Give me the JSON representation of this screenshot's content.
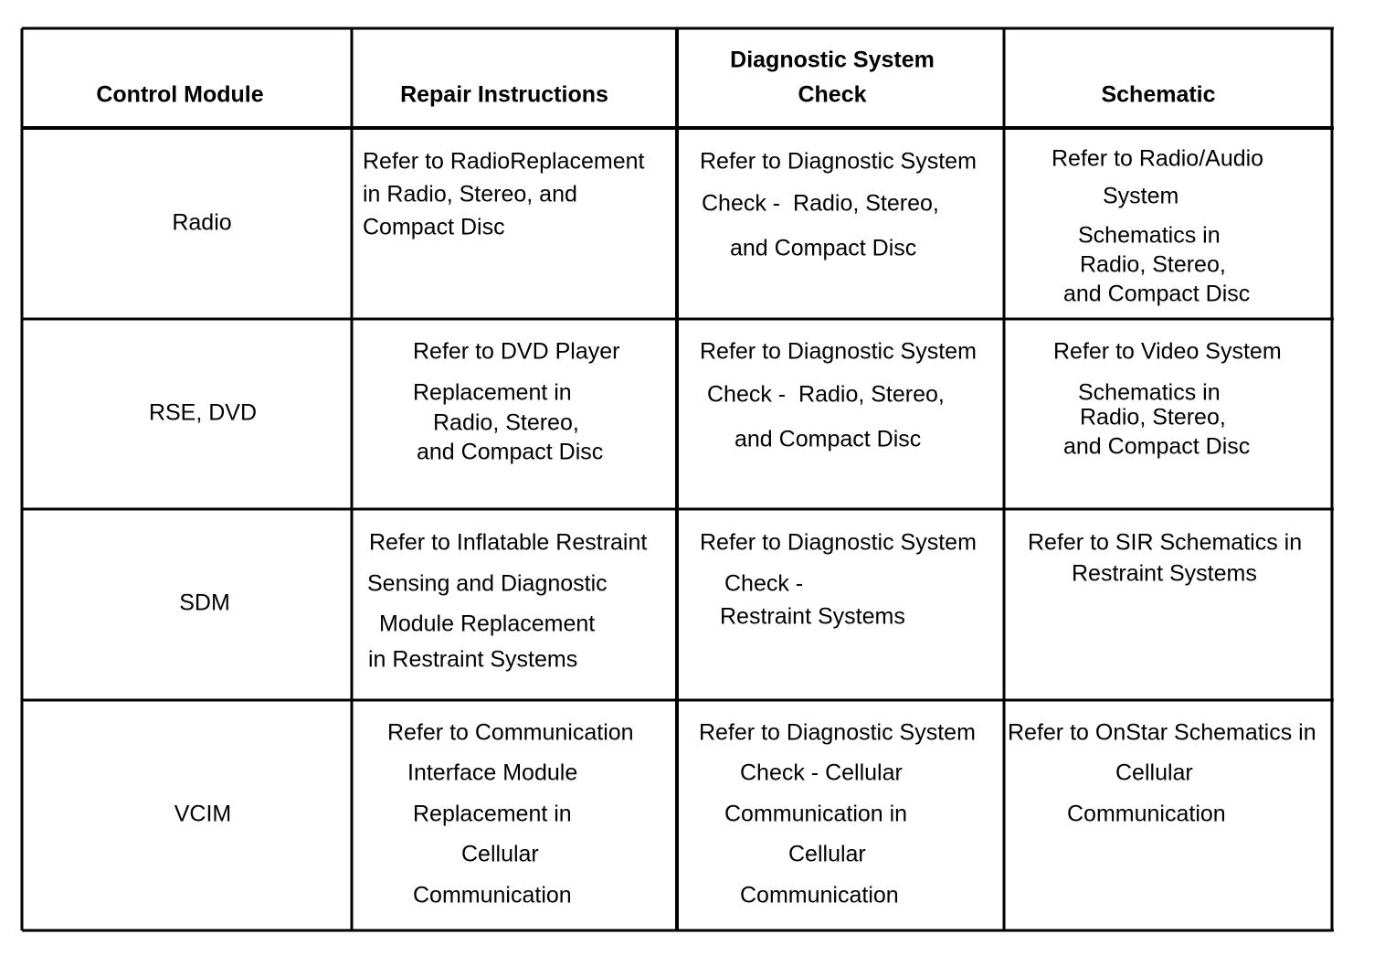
{
  "table": {
    "header": [
      [
        "Control Module"
      ],
      [
        "Repair Instructions"
      ],
      [
        "Diagnostic System",
        "Check"
      ],
      [
        "Schematic"
      ]
    ],
    "rows": [
      [
        [
          "Radio"
        ],
        [
          "Refer to RadioReplacement",
          "in Radio, Stereo, and",
          "Compact Disc"
        ],
        [
          "Refer to Diagnostic System",
          "Check -  Radio, Stereo,",
          "and Compact Disc"
        ],
        [
          "Refer to Radio/Audio",
          "System",
          "Schematics in",
          "Radio, Stereo,",
          "and Compact Disc"
        ]
      ],
      [
        [
          "RSE, DVD"
        ],
        [
          "Refer to DVD Player",
          "Replacement in",
          "Radio, Stereo,",
          "and Compact Disc"
        ],
        [
          "Refer to Diagnostic System",
          "Check -  Radio, Stereo,",
          "and Compact Disc"
        ],
        [
          "Refer to Video System",
          "Schematics in",
          "Radio, Stereo,",
          "and Compact Disc"
        ]
      ],
      [
        [
          "SDM"
        ],
        [
          "Refer to Inflatable Restraint",
          "Sensing and Diagnostic",
          "Module Replacement",
          "in Restraint Systems"
        ],
        [
          "Refer to Diagnostic System",
          "Check -",
          "Restraint Systems"
        ],
        [
          "Refer to SIR Schematics in",
          "Restraint Systems"
        ]
      ],
      [
        [
          "VCIM"
        ],
        [
          "Refer to Communication",
          "Interface Module",
          "Replacement in",
          "Cellular",
          "Communication"
        ],
        [
          "Refer to Diagnostic System",
          "Check - Cellular",
          "Communication in",
          "Cellular",
          "Communication"
        ],
        [
          "Refer to OnStar Schematics in",
          "Cellular",
          "Communication"
        ]
      ]
    ]
  }
}
